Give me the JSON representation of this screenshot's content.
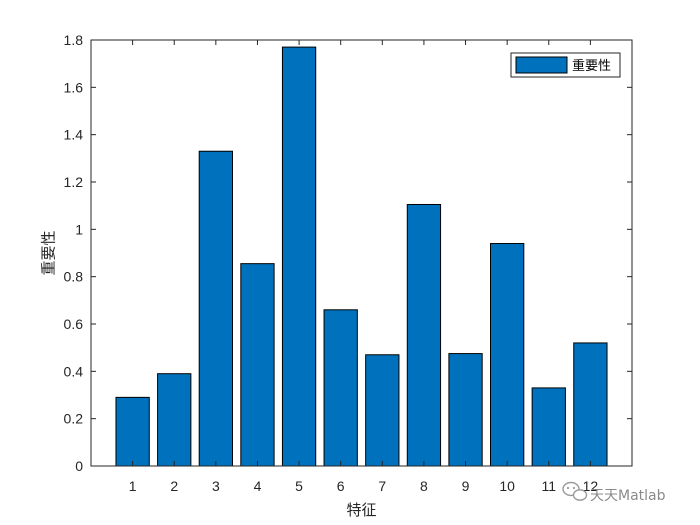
{
  "chart_data": {
    "type": "bar",
    "categories": [
      "1",
      "2",
      "3",
      "4",
      "5",
      "6",
      "7",
      "8",
      "9",
      "10",
      "11",
      "12"
    ],
    "series": [
      {
        "name": "重要性",
        "values": [
          0.29,
          0.39,
          1.33,
          0.855,
          1.77,
          0.66,
          0.47,
          1.105,
          0.475,
          0.94,
          0.33,
          0.52
        ],
        "color": "#0072BD"
      }
    ],
    "title": "",
    "xlabel": "特征",
    "ylabel": "重要性",
    "ylim": [
      0,
      1.8
    ],
    "yticks": [
      "0",
      "0.2",
      "0.4",
      "0.6",
      "0.8",
      "1",
      "1.2",
      "1.4",
      "1.6",
      "1.8"
    ],
    "grid": false,
    "legend_position": "top-right"
  },
  "watermark": {
    "text": "天天Matlab",
    "icon": "wechat-icon"
  },
  "colors": {
    "bar_fill": "#0072BD",
    "bar_edge": "#000000",
    "axis": "#262626"
  }
}
